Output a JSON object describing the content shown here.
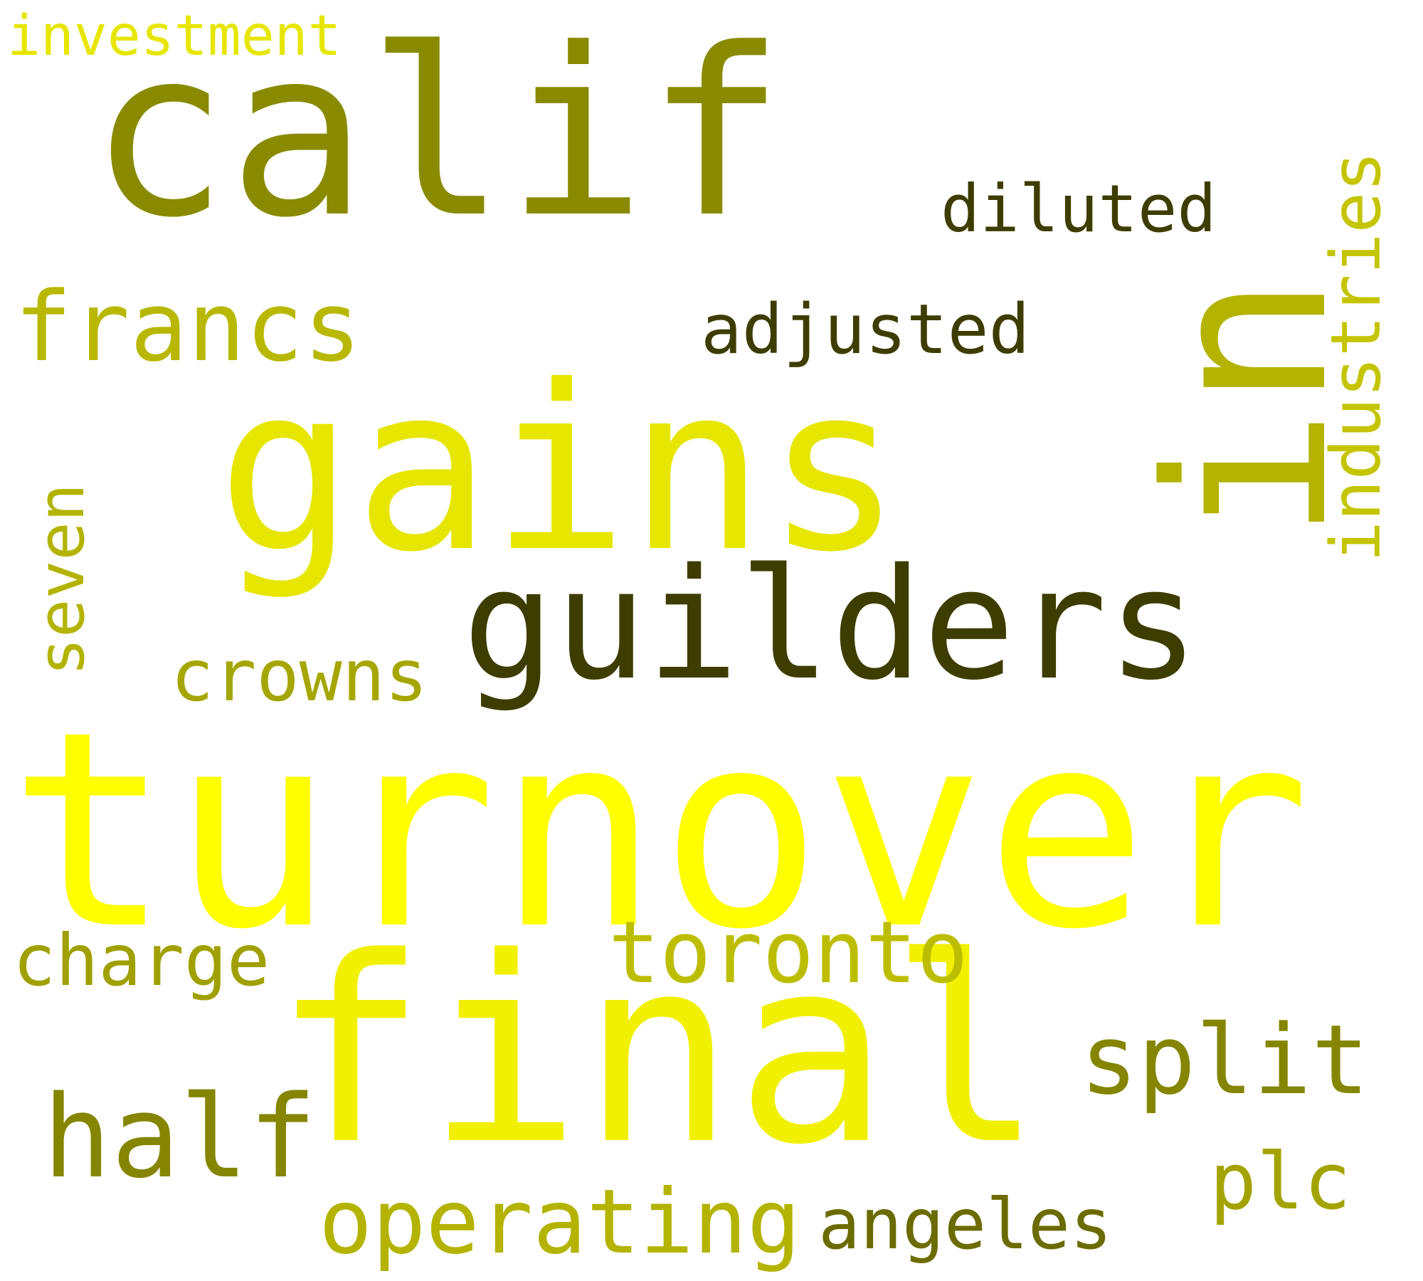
{
  "words": {
    "turnover": {
      "text": "turnover",
      "color": "#ffff00"
    },
    "final": {
      "text": "final",
      "color": "#f0f000"
    },
    "gains": {
      "text": "gains",
      "color": "#e6e600"
    },
    "calif": {
      "text": "calif",
      "color": "#8a8a00"
    },
    "in": {
      "text": "in",
      "color": "#b3b300"
    },
    "guilders": {
      "text": "guilders",
      "color": "#3d3d00"
    },
    "francs": {
      "text": "francs",
      "color": "#b8b800"
    },
    "diluted": {
      "text": "diluted",
      "color": "#3d3d00"
    },
    "adjusted": {
      "text": "adjusted",
      "color": "#3d3d00"
    },
    "industries": {
      "text": "industries",
      "color": "#c4c400"
    },
    "seven": {
      "text": "seven",
      "color": "#b3b300"
    },
    "crowns": {
      "text": "crowns",
      "color": "#a6a600"
    },
    "charge": {
      "text": "charge",
      "color": "#a0a000"
    },
    "toronto": {
      "text": "toronto",
      "color": "#bdbd00"
    },
    "split": {
      "text": "split",
      "color": "#858500"
    },
    "half": {
      "text": "half",
      "color": "#858500"
    },
    "plc": {
      "text": "plc",
      "color": "#a3a300"
    },
    "operating": {
      "text": "operating",
      "color": "#b3b300"
    },
    "angeles": {
      "text": "angeles",
      "color": "#6b6b00"
    },
    "investment": {
      "text": "investment",
      "color": "#e6e600"
    }
  }
}
